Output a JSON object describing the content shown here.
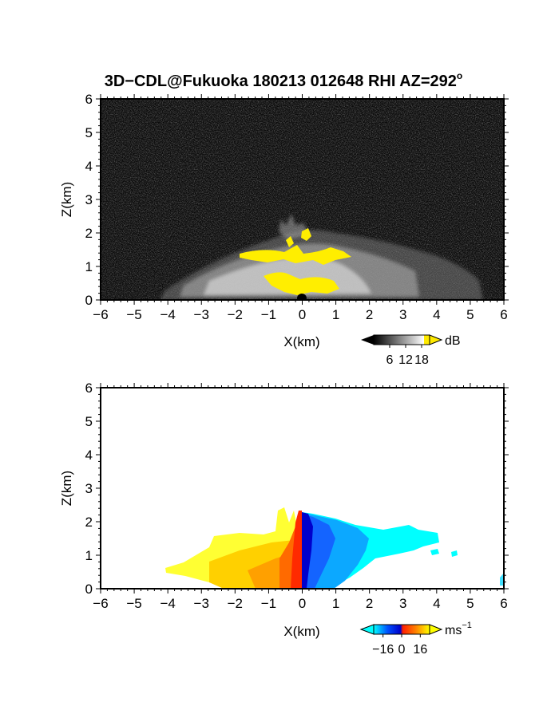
{
  "title": "3D−CDL@Fukuoka 180213 012648 RHI AZ=292",
  "title_degree": "o",
  "chart_data": [
    {
      "type": "heatmap",
      "panel": "reflectivity",
      "xlabel": "X(km)",
      "ylabel": "Z(km)",
      "xlim": [
        -6,
        6
      ],
      "ylim": [
        0,
        6
      ],
      "xticks": [
        "−6",
        "−5",
        "−4",
        "−3",
        "−2",
        "−1",
        "0",
        "1",
        "2",
        "3",
        "4",
        "5",
        "6"
      ],
      "yticks": [
        "0",
        "1",
        "2",
        "3",
        "4",
        "5",
        "6"
      ],
      "grid": false,
      "colorbar": {
        "unit": "dB",
        "ticks": [
          "6",
          "12",
          "18"
        ],
        "range": [
          0,
          21
        ],
        "colors": [
          "#000000",
          "#ffffff",
          "#ffea00"
        ]
      },
      "features": [
        {
          "name": "bright echo core",
          "x": [
            -0.7,
            1.0
          ],
          "z": [
            0.1,
            0.5
          ],
          "level_db": 18
        },
        {
          "name": "yellow band",
          "x": [
            -1.8,
            1.4
          ],
          "z": [
            1.2,
            1.6
          ],
          "level_db": 18
        },
        {
          "name": "grey echo fan",
          "x": [
            -4.0,
            4.0
          ],
          "z": [
            0.0,
            2.4
          ],
          "level_db": 10
        }
      ]
    },
    {
      "type": "heatmap",
      "panel": "doppler velocity",
      "xlabel": "X(km)",
      "ylabel": "Z(km)",
      "xlim": [
        -6,
        6
      ],
      "ylim": [
        0,
        6
      ],
      "xticks": [
        "−6",
        "−5",
        "−4",
        "−3",
        "−2",
        "−1",
        "0",
        "1",
        "2",
        "3",
        "4",
        "5",
        "6"
      ],
      "yticks": [
        "0",
        "1",
        "2",
        "3",
        "4",
        "5",
        "6"
      ],
      "grid": false,
      "colorbar": {
        "unit": "ms",
        "unit_exponent": "−1",
        "ticks": [
          "−16",
          "0",
          "16"
        ],
        "range": [
          -24,
          24
        ],
        "colors": [
          "#00ffff",
          "#0050ff",
          "#0000c8",
          "#ff2000",
          "#ff8000",
          "#ffff00"
        ]
      },
      "features": [
        {
          "name": "positive velocity region",
          "x": [
            -4.0,
            0.0
          ],
          "z": [
            0.0,
            2.4
          ],
          "velocity_ms": [
            2,
            16
          ]
        },
        {
          "name": "negative velocity region",
          "x": [
            0.0,
            4.7
          ],
          "z": [
            0.0,
            2.3
          ],
          "velocity_ms": [
            -16,
            -2
          ]
        }
      ]
    }
  ]
}
